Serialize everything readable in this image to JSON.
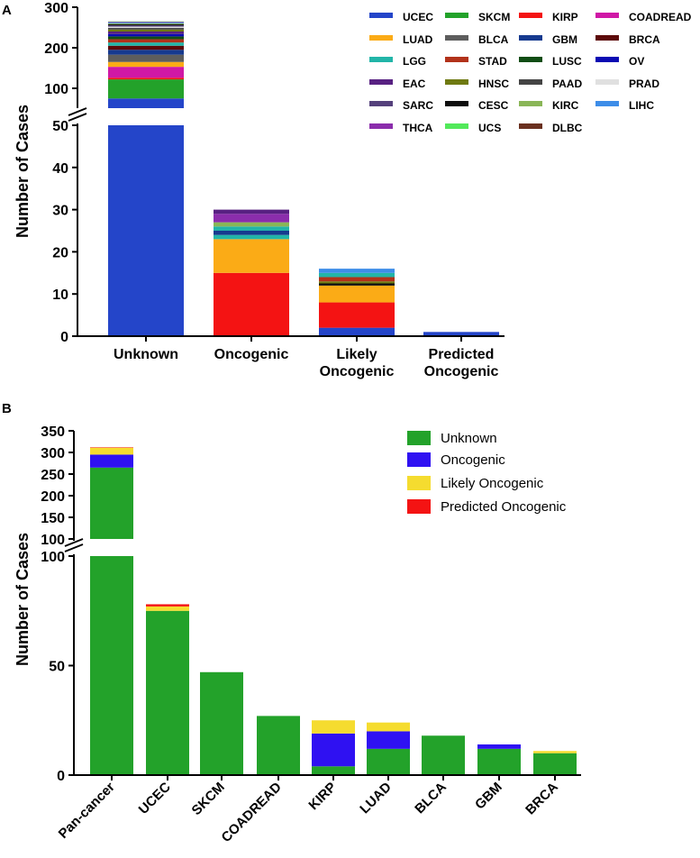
{
  "panels": {
    "a_letter": "A",
    "b_letter": "B"
  },
  "colors": {
    "UCEC": "#2445c9",
    "SKCM": "#23a22a",
    "KIRP": "#f41313",
    "COADREAD": "#d018a6",
    "LUAD": "#fbab16",
    "BLCA": "#5d5d5d",
    "GBM": "#163a8f",
    "BRCA": "#5c0a0a",
    "LGG": "#22b5a8",
    "STAD": "#b2321a",
    "LUSC": "#114d15",
    "OV": "#0a0ab3",
    "EAC": "#582182",
    "HNSC": "#6f7a12",
    "PAAD": "#444444",
    "PRAD": "#e0e0e0",
    "SARC": "#55417c",
    "CESC": "#0d0d0d",
    "KIRC": "#8ab657",
    "LIHC": "#3d8de8",
    "THCA": "#8b2dac",
    "UCS": "#52e95a",
    "DLBC": "#6a301f",
    "Unknown": "#23a22a",
    "Oncogenic": "#2f11f2",
    "Likely Oncogenic": "#f5dc2f",
    "Predicted Oncogenic": "#f41313"
  },
  "chart_data": [
    {
      "type": "bar",
      "stacked": true,
      "panel": "A",
      "ylabel": "Number of Cases",
      "y_axis_broken": true,
      "y_lower_range": [
        0,
        50
      ],
      "y_upper_range": [
        50,
        300
      ],
      "y_lower_ticks": [
        "0",
        "10",
        "20",
        "30",
        "40",
        "50"
      ],
      "y_upper_ticks": [
        "100",
        "200",
        "300"
      ],
      "categories": [
        "Unknown",
        "Oncogenic",
        "Likely Oncogenic",
        "Predicted Oncogenic"
      ],
      "category_lines": [
        [
          "Unknown"
        ],
        [
          "Oncogenic"
        ],
        [
          "Likely",
          "Oncogenic"
        ],
        [
          "Predicted",
          "Oncogenic"
        ]
      ],
      "legend": [
        "UCEC",
        "SKCM",
        "KIRP",
        "COADREAD",
        "LUAD",
        "BLCA",
        "GBM",
        "BRCA",
        "LGG",
        "STAD",
        "LUSC",
        "OV",
        "EAC",
        "HNSC",
        "PAAD",
        "PRAD",
        "SARC",
        "CESC",
        "KIRC",
        "LIHC",
        "THCA",
        "UCS",
        "DLBC"
      ],
      "legend_position": "top-right",
      "stacks": [
        [
          [
            "UCEC",
            75
          ],
          [
            "SKCM",
            47
          ],
          [
            "KIRP",
            4
          ],
          [
            "COADREAD",
            27
          ],
          [
            "LUAD",
            12
          ],
          [
            "BLCA",
            18
          ],
          [
            "GBM",
            12
          ],
          [
            "BRCA",
            10
          ],
          [
            "LGG",
            8
          ],
          [
            "STAD",
            8
          ],
          [
            "LUSC",
            7
          ],
          [
            "OV",
            6
          ],
          [
            "EAC",
            6
          ],
          [
            "HNSC",
            5
          ],
          [
            "PAAD",
            4
          ],
          [
            "PRAD",
            3
          ],
          [
            "SARC",
            3
          ],
          [
            "CESC",
            3
          ],
          [
            "KIRC",
            2
          ],
          [
            "LIHC",
            2
          ],
          [
            "THCA",
            2
          ],
          [
            "UCS",
            1
          ]
        ],
        [
          [
            "KIRP",
            15
          ],
          [
            "LUAD",
            8
          ],
          [
            "LGG",
            1
          ],
          [
            "GBM",
            1
          ],
          [
            "LGG",
            1
          ],
          [
            "KIRC",
            1
          ],
          [
            "THCA",
            2
          ],
          [
            "EAC",
            1
          ]
        ],
        [
          [
            "UCEC",
            2
          ],
          [
            "KIRP",
            6
          ],
          [
            "LUAD",
            4
          ],
          [
            "CESC",
            0.5
          ],
          [
            "HNSC",
            0.5
          ],
          [
            "STAD",
            1
          ],
          [
            "LGG",
            1
          ],
          [
            "LIHC",
            1
          ]
        ],
        [
          [
            "UCEC",
            1
          ]
        ]
      ]
    },
    {
      "type": "bar",
      "stacked": true,
      "panel": "B",
      "ylabel": "Number of Cases",
      "y_axis_broken": true,
      "y_lower_range": [
        0,
        100
      ],
      "y_upper_range": [
        100,
        350
      ],
      "y_lower_ticks": [
        "0",
        "50",
        "100"
      ],
      "y_upper_ticks": [
        "100",
        "150",
        "200",
        "250",
        "300",
        "350"
      ],
      "categories": [
        "Pan-cancer",
        "UCEC",
        "SKCM",
        "COADREAD",
        "KIRP",
        "LUAD",
        "BLCA",
        "GBM",
        "BRCA"
      ],
      "legend_position": "top-right",
      "series": [
        {
          "name": "Unknown",
          "values": [
            265,
            75,
            47,
            27,
            4,
            12,
            18,
            12,
            10
          ]
        },
        {
          "name": "Oncogenic",
          "values": [
            30,
            0,
            0,
            0,
            15,
            8,
            0,
            2,
            0
          ]
        },
        {
          "name": "Likely Oncogenic",
          "values": [
            16,
            2,
            0,
            0,
            6,
            4,
            0,
            0,
            1
          ]
        },
        {
          "name": "Predicted Oncogenic",
          "values": [
            1,
            1,
            0,
            0,
            0,
            0,
            0,
            0,
            0
          ]
        }
      ]
    }
  ]
}
